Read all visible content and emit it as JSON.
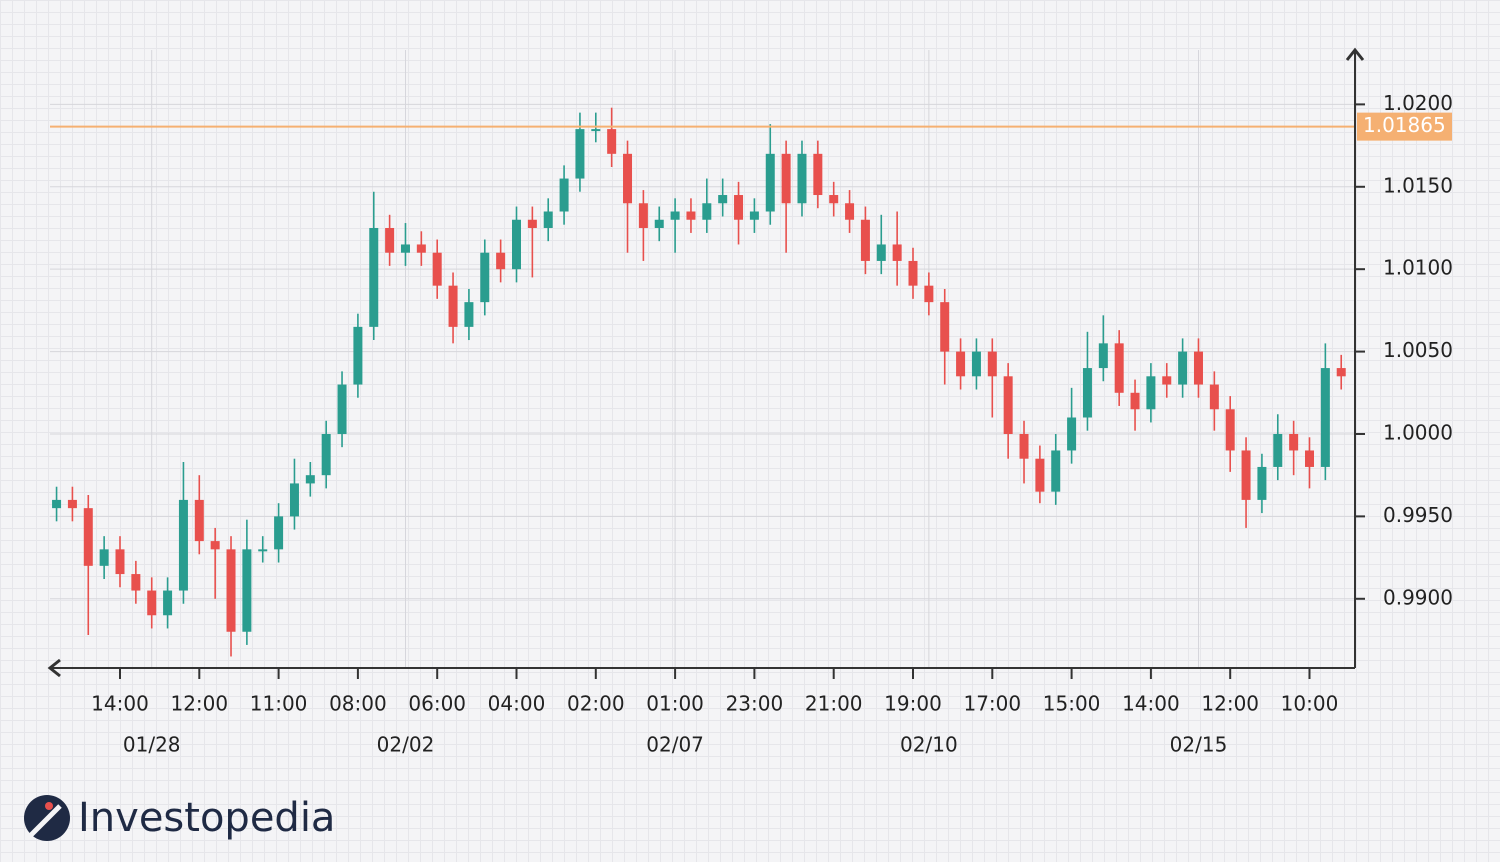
{
  "chart_data": {
    "type": "candlestick",
    "categories": [
      null,
      null,
      null,
      null,
      "14:00",
      null,
      null,
      null,
      null,
      "12:00",
      null,
      null,
      null,
      null,
      "11:00",
      null,
      null,
      null,
      null,
      "08:00",
      null,
      null,
      null,
      null,
      "06:00",
      null,
      null,
      null,
      null,
      "04:00",
      null,
      null,
      null,
      null,
      "02:00",
      null,
      null,
      null,
      null,
      "01:00",
      null,
      null,
      null,
      null,
      "23:00",
      null,
      null,
      null,
      null,
      "21:00",
      null,
      null,
      null,
      null,
      "19:00",
      null,
      null,
      null,
      null,
      "17:00",
      null,
      null,
      null,
      null,
      "15:00",
      null,
      null,
      null,
      null,
      "14:00",
      null,
      null,
      null,
      null,
      "12:00",
      null,
      null,
      null,
      null,
      "10:00",
      null,
      null
    ],
    "dates": [
      null,
      null,
      null,
      null,
      null,
      null,
      "01/28",
      null,
      null,
      null,
      null,
      null,
      null,
      null,
      null,
      null,
      null,
      null,
      null,
      null,
      null,
      null,
      "02/02",
      null,
      null,
      null,
      null,
      null,
      null,
      null,
      null,
      null,
      null,
      null,
      null,
      null,
      null,
      null,
      null,
      "02/07",
      null,
      null,
      null,
      null,
      null,
      null,
      null,
      null,
      null,
      null,
      null,
      null,
      null,
      null,
      null,
      "02/10",
      null,
      null,
      null,
      null,
      null,
      null,
      null,
      null,
      null,
      null,
      null,
      null,
      null,
      null,
      null,
      null,
      "02/15",
      null,
      null,
      null,
      null,
      null,
      null,
      null,
      null,
      null
    ],
    "open": [
      0.9955,
      0.996,
      0.9955,
      0.992,
      0.993,
      0.9915,
      0.9905,
      0.989,
      0.9905,
      0.996,
      0.9935,
      0.993,
      0.988,
      0.993,
      0.993,
      0.995,
      0.997,
      0.9975,
      1.0,
      1.003,
      1.0065,
      1.0125,
      1.011,
      1.0115,
      1.011,
      1.009,
      1.0065,
      1.008,
      1.011,
      1.01,
      1.013,
      1.0125,
      1.0135,
      1.0155,
      1.0185,
      1.0185,
      1.017,
      1.014,
      1.0125,
      1.013,
      1.0135,
      1.013,
      1.014,
      1.0145,
      1.013,
      1.0135,
      1.017,
      1.014,
      1.017,
      1.0145,
      1.014,
      1.013,
      1.0105,
      1.0115,
      1.0105,
      1.009,
      1.008,
      1.005,
      1.0035,
      1.005,
      1.0035,
      1.0,
      0.9985,
      0.9965,
      0.999,
      1.001,
      1.004,
      1.0055,
      1.0025,
      1.0015,
      1.0035,
      1.003,
      1.005,
      1.003,
      1.0015,
      0.999,
      0.996,
      0.998,
      1.0,
      0.999,
      0.998,
      1.004
    ],
    "high": [
      0.9968,
      0.9968,
      0.9963,
      0.9938,
      0.9938,
      0.9923,
      0.9913,
      0.9913,
      0.9983,
      0.9975,
      0.9943,
      0.9938,
      0.9948,
      0.9938,
      0.9958,
      0.9985,
      0.9983,
      1.0008,
      1.0038,
      1.0073,
      1.0147,
      1.0133,
      1.0128,
      1.0123,
      1.0118,
      1.0098,
      1.0088,
      1.0118,
      1.0118,
      1.0138,
      1.0138,
      1.0143,
      1.0163,
      1.0195,
      1.0195,
      1.0198,
      1.0178,
      1.0148,
      1.0138,
      1.0143,
      1.0143,
      1.0155,
      1.0155,
      1.0153,
      1.0143,
      1.0188,
      1.0178,
      1.0178,
      1.0178,
      1.0153,
      1.0148,
      1.0138,
      1.0133,
      1.0135,
      1.0113,
      1.0098,
      1.0088,
      1.0058,
      1.0058,
      1.0058,
      1.0043,
      1.0008,
      0.9993,
      1.0,
      1.0028,
      1.0062,
      1.0072,
      1.0063,
      1.0033,
      1.0043,
      1.0043,
      1.0058,
      1.0058,
      1.0038,
      1.0023,
      0.9998,
      0.9988,
      1.0012,
      1.0008,
      0.9998,
      1.0055,
      1.0048
    ],
    "low": [
      0.9947,
      0.9947,
      0.9878,
      0.9912,
      0.9907,
      0.9897,
      0.9882,
      0.9882,
      0.9897,
      0.9927,
      0.99,
      0.9865,
      0.9872,
      0.9922,
      0.9922,
      0.9942,
      0.9962,
      0.9967,
      0.9992,
      1.0022,
      1.0057,
      1.0102,
      1.0102,
      1.0102,
      1.0082,
      1.0055,
      1.0057,
      1.0072,
      1.0092,
      1.0092,
      1.0095,
      1.0117,
      1.0127,
      1.0147,
      1.0177,
      1.0162,
      1.011,
      1.0105,
      1.0117,
      1.011,
      1.0122,
      1.0122,
      1.0132,
      1.0115,
      1.0122,
      1.0127,
      1.011,
      1.0132,
      1.0137,
      1.0132,
      1.0122,
      1.0097,
      1.0097,
      1.009,
      1.0082,
      1.0072,
      1.003,
      1.0027,
      1.0027,
      1.001,
      0.9985,
      0.997,
      0.9958,
      0.9957,
      0.9982,
      1.0002,
      1.0032,
      1.0017,
      1.0002,
      1.0007,
      1.0022,
      1.0022,
      1.0022,
      1.0002,
      0.9977,
      0.9943,
      0.9952,
      0.9972,
      0.9975,
      0.9967,
      0.9972,
      1.0027
    ],
    "close": [
      0.996,
      0.9955,
      0.992,
      0.993,
      0.9915,
      0.9905,
      0.989,
      0.9905,
      0.996,
      0.9935,
      0.993,
      0.988,
      0.993,
      0.993,
      0.995,
      0.997,
      0.9975,
      1.0,
      1.003,
      1.0065,
      1.0125,
      1.011,
      1.0115,
      1.011,
      1.009,
      1.0065,
      1.008,
      1.011,
      1.01,
      1.013,
      1.0125,
      1.0135,
      1.0155,
      1.0185,
      1.0185,
      1.017,
      1.014,
      1.0125,
      1.013,
      1.0135,
      1.013,
      1.014,
      1.0145,
      1.013,
      1.0135,
      1.017,
      1.014,
      1.017,
      1.0145,
      1.014,
      1.013,
      1.0105,
      1.0115,
      1.0105,
      1.009,
      1.008,
      1.005,
      1.0035,
      1.005,
      1.0035,
      1.0,
      0.9985,
      0.9965,
      0.999,
      1.001,
      1.004,
      1.0055,
      1.0025,
      1.0015,
      1.0035,
      1.003,
      1.005,
      1.003,
      1.0015,
      0.999,
      0.996,
      0.998,
      1.0,
      0.999,
      0.998,
      1.004,
      1.0035
    ],
    "up_color": "#2a9d8f",
    "down_color": "#e8504d",
    "ylim": [
      0.9858,
      1.0233
    ],
    "yticks": [
      {
        "value": 0.99,
        "label": "0.9900"
      },
      {
        "value": 0.995,
        "label": "0.9950"
      },
      {
        "value": 1.0,
        "label": "1.0000"
      },
      {
        "value": 1.005,
        "label": "1.0050"
      },
      {
        "value": 1.01,
        "label": "1.0100"
      },
      {
        "value": 1.015,
        "label": "1.0150"
      },
      {
        "value": 1.02,
        "label": "1.0200"
      }
    ],
    "price_line": 1.01865,
    "price_line_color": "#f5b072",
    "grid": true
  },
  "brand": "Investopedia"
}
